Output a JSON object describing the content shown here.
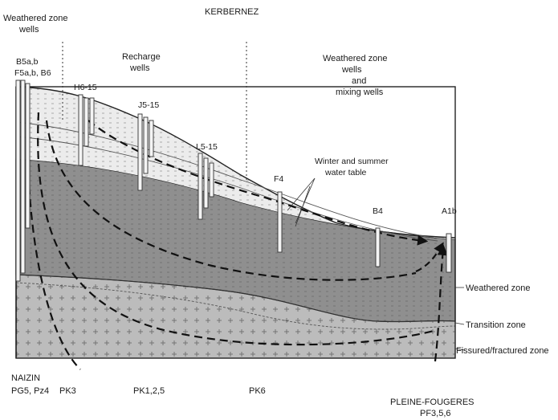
{
  "title": "KERBERNEZ",
  "sections": {
    "weathered_left": [
      "Weathered zone",
      "wells"
    ],
    "recharge": [
      "Recharge",
      "wells"
    ],
    "weathered_right": [
      "Weathered zone",
      "wells",
      "and",
      "mixing wells"
    ]
  },
  "wells": {
    "b5": [
      "B5a,b",
      "F5a,b, B6"
    ],
    "h6": "H6-15",
    "j5": "J5-15",
    "l5": "L5-15",
    "f4": "F4",
    "b4": "B4",
    "a1b": "A1b"
  },
  "water_table": [
    "Winter and summer",
    "water table"
  ],
  "zones": {
    "weathered": "Weathered zone",
    "transition": "Transition zone",
    "fissured": "Fissured/fractured zone"
  },
  "bottom": {
    "naizin": [
      "NAIZIN",
      "PG5, Pz4"
    ],
    "pk3": "PK3",
    "pk125": "PK1,2,5",
    "pk6": "PK6",
    "pleine": [
      "PLEINE-FOUGERES",
      "PF3,5,6"
    ]
  },
  "colors": {
    "unsaturated": "#ececec",
    "saturated": "#8f8f8f",
    "bedrock": "#bcbcbc",
    "outline": "#222222"
  }
}
